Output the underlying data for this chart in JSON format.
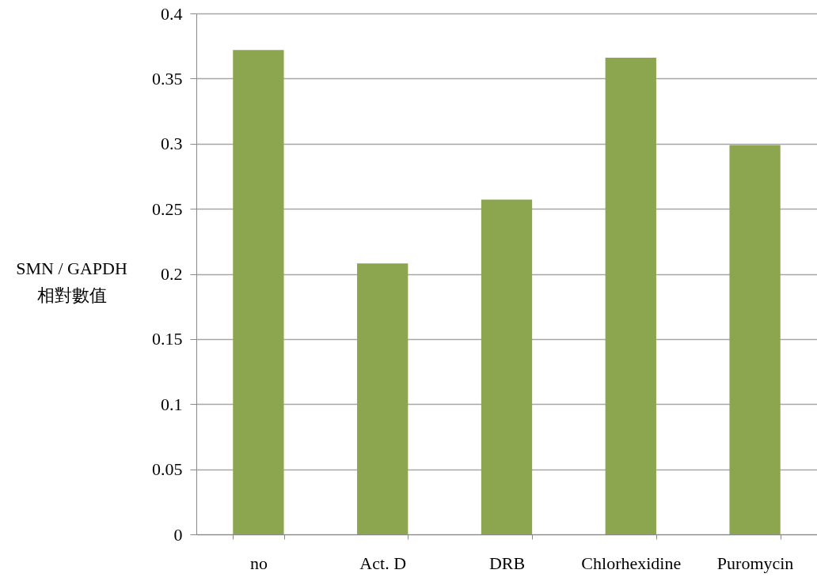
{
  "chart_data": {
    "type": "bar",
    "ylabel": "SMN / GAPDH\n相對數值",
    "categories": [
      "no",
      "Act. D",
      "DRB",
      "Chlorhexidine",
      "Puromycin"
    ],
    "values": [
      0.372,
      0.208,
      0.257,
      0.366,
      0.299
    ],
    "color": "#8ba64f",
    "ylim": [
      0,
      0.4
    ],
    "yticks": [
      0,
      0.05,
      0.1,
      0.15,
      0.2,
      0.25,
      0.3,
      0.35,
      0.4
    ],
    "grid": "y"
  }
}
